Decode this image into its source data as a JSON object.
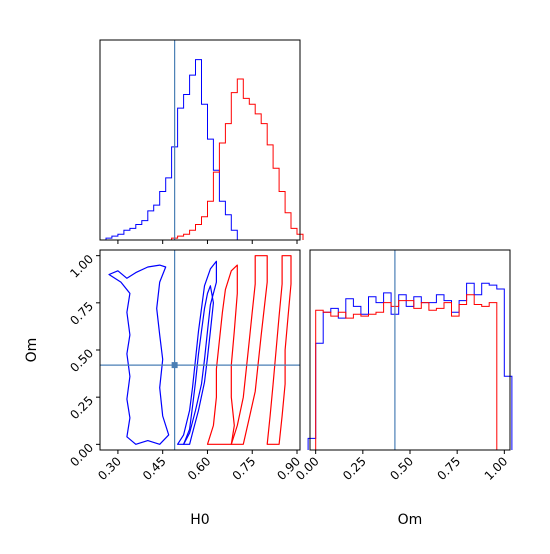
{
  "chart_data": {
    "type": "corner",
    "parameters": [
      "H0",
      "Om"
    ],
    "truths": {
      "H0": 0.49,
      "Om": 0.42
    },
    "truth_color": "#4a7fb5",
    "series_colors": {
      "blue": "#0000ff",
      "red": "#ff0000"
    },
    "axes": {
      "H0": {
        "label": "H0",
        "range": [
          0.24,
          0.91
        ],
        "ticks": [
          0.3,
          0.45,
          0.6,
          0.75,
          0.9
        ],
        "tick_labels": [
          "0.30",
          "0.45",
          "0.60",
          "0.75",
          "0.90"
        ]
      },
      "Om": {
        "label": "Om",
        "range": [
          -0.03,
          1.03
        ],
        "ticks": [
          0.0,
          0.25,
          0.5,
          0.75,
          1.0
        ],
        "tick_labels": [
          "0.00",
          "0.25",
          "0.50",
          "0.75",
          "1.00"
        ]
      }
    },
    "hist_H0": {
      "ymax": 1.0,
      "blue": {
        "edges": [
          0.26,
          0.28,
          0.3,
          0.32,
          0.34,
          0.36,
          0.38,
          0.4,
          0.42,
          0.44,
          0.46,
          0.48,
          0.5,
          0.52,
          0.54,
          0.56,
          0.58,
          0.6,
          0.62,
          0.64,
          0.66,
          0.68,
          0.7
        ],
        "counts": [
          0.01,
          0.02,
          0.03,
          0.05,
          0.06,
          0.08,
          0.1,
          0.15,
          0.18,
          0.25,
          0.32,
          0.48,
          0.68,
          0.75,
          0.85,
          0.93,
          0.7,
          0.52,
          0.36,
          0.2,
          0.13,
          0.05
        ]
      },
      "red": {
        "edges": [
          0.48,
          0.5,
          0.52,
          0.54,
          0.56,
          0.58,
          0.6,
          0.62,
          0.64,
          0.66,
          0.68,
          0.7,
          0.72,
          0.74,
          0.76,
          0.78,
          0.8,
          0.82,
          0.84,
          0.86,
          0.88,
          0.9,
          0.92
        ],
        "counts": [
          0.01,
          0.02,
          0.03,
          0.05,
          0.08,
          0.12,
          0.2,
          0.35,
          0.5,
          0.6,
          0.76,
          0.83,
          0.73,
          0.7,
          0.65,
          0.6,
          0.49,
          0.37,
          0.25,
          0.14,
          0.06,
          0.03
        ]
      }
    },
    "hist_Om": {
      "ymax": 1.0,
      "blue": {
        "edges": [
          -0.04,
          0.0,
          0.04,
          0.08,
          0.12,
          0.16,
          0.2,
          0.24,
          0.28,
          0.32,
          0.36,
          0.4,
          0.44,
          0.48,
          0.52,
          0.56,
          0.6,
          0.64,
          0.68,
          0.72,
          0.76,
          0.8,
          0.84,
          0.88,
          0.92,
          0.96,
          1.0,
          1.04
        ],
        "counts": [
          0.06,
          0.55,
          0.71,
          0.73,
          0.68,
          0.78,
          0.74,
          0.7,
          0.79,
          0.76,
          0.81,
          0.7,
          0.8,
          0.74,
          0.79,
          0.76,
          0.76,
          0.8,
          0.77,
          0.71,
          0.77,
          0.86,
          0.8,
          0.86,
          0.85,
          0.83,
          0.38
        ]
      },
      "red": {
        "edges": [
          0.0,
          0.04,
          0.08,
          0.12,
          0.16,
          0.2,
          0.24,
          0.28,
          0.32,
          0.36,
          0.4,
          0.44,
          0.48,
          0.52,
          0.56,
          0.6,
          0.64,
          0.68,
          0.72,
          0.76,
          0.8,
          0.84,
          0.88,
          0.92,
          0.96,
          1.0
        ],
        "counts": [
          0.72,
          0.71,
          0.69,
          0.71,
          0.68,
          0.7,
          0.69,
          0.7,
          0.71,
          0.76,
          0.74,
          0.77,
          0.77,
          0.73,
          0.76,
          0.72,
          0.73,
          0.76,
          0.69,
          0.75,
          0.8,
          0.75,
          0.74,
          0.76,
          0.0
        ]
      }
    },
    "contours": {
      "blue": [
        [
          [
            0.5,
            0.0
          ],
          [
            0.52,
            0.05
          ],
          [
            0.54,
            0.18
          ],
          [
            0.55,
            0.3
          ],
          [
            0.56,
            0.45
          ],
          [
            0.57,
            0.6
          ],
          [
            0.58,
            0.72
          ],
          [
            0.59,
            0.84
          ],
          [
            0.61,
            0.93
          ],
          [
            0.63,
            0.97
          ],
          [
            0.63,
            0.86
          ],
          [
            0.61,
            0.74
          ],
          [
            0.6,
            0.6
          ],
          [
            0.59,
            0.45
          ],
          [
            0.58,
            0.32
          ],
          [
            0.56,
            0.18
          ],
          [
            0.54,
            0.06
          ],
          [
            0.52,
            0.0
          ]
        ],
        [
          [
            0.52,
            0.0
          ],
          [
            0.54,
            0.08
          ],
          [
            0.55,
            0.2
          ],
          [
            0.56,
            0.33
          ],
          [
            0.57,
            0.48
          ],
          [
            0.58,
            0.6
          ],
          [
            0.59,
            0.72
          ],
          [
            0.6,
            0.8
          ],
          [
            0.61,
            0.84
          ],
          [
            0.62,
            0.75
          ],
          [
            0.61,
            0.6
          ],
          [
            0.6,
            0.46
          ],
          [
            0.59,
            0.33
          ],
          [
            0.57,
            0.18
          ],
          [
            0.55,
            0.06
          ],
          [
            0.54,
            0.0
          ]
        ],
        [
          [
            0.27,
            0.9
          ],
          [
            0.3,
            0.92
          ],
          [
            0.33,
            0.88
          ],
          [
            0.36,
            0.91
          ],
          [
            0.4,
            0.94
          ],
          [
            0.44,
            0.95
          ],
          [
            0.46,
            0.94
          ],
          [
            0.44,
            0.86
          ],
          [
            0.43,
            0.72
          ],
          [
            0.44,
            0.58
          ],
          [
            0.45,
            0.45
          ],
          [
            0.44,
            0.3
          ],
          [
            0.45,
            0.15
          ],
          [
            0.47,
            0.05
          ],
          [
            0.44,
            0.0
          ],
          [
            0.4,
            0.02
          ],
          [
            0.36,
            0.0
          ],
          [
            0.33,
            0.04
          ],
          [
            0.34,
            0.14
          ],
          [
            0.33,
            0.24
          ],
          [
            0.34,
            0.36
          ],
          [
            0.33,
            0.48
          ],
          [
            0.34,
            0.58
          ],
          [
            0.33,
            0.7
          ],
          [
            0.34,
            0.8
          ],
          [
            0.31,
            0.86
          ],
          [
            0.27,
            0.9
          ]
        ]
      ],
      "red": [
        [
          [
            0.68,
            0.0
          ],
          [
            0.7,
            0.1
          ],
          [
            0.72,
            0.25
          ],
          [
            0.73,
            0.4
          ],
          [
            0.74,
            0.55
          ],
          [
            0.75,
            0.7
          ],
          [
            0.76,
            0.85
          ],
          [
            0.76,
            1.0
          ],
          [
            0.8,
            1.0
          ],
          [
            0.8,
            0.86
          ],
          [
            0.79,
            0.72
          ],
          [
            0.78,
            0.58
          ],
          [
            0.77,
            0.43
          ],
          [
            0.76,
            0.28
          ],
          [
            0.74,
            0.14
          ],
          [
            0.72,
            0.0
          ]
        ],
        [
          [
            0.6,
            0.0
          ],
          [
            0.62,
            0.1
          ],
          [
            0.63,
            0.25
          ],
          [
            0.63,
            0.4
          ],
          [
            0.64,
            0.55
          ],
          [
            0.65,
            0.7
          ],
          [
            0.66,
            0.82
          ],
          [
            0.68,
            0.92
          ],
          [
            0.7,
            0.95
          ],
          [
            0.7,
            0.8
          ],
          [
            0.69,
            0.6
          ],
          [
            0.68,
            0.42
          ],
          [
            0.68,
            0.25
          ],
          [
            0.69,
            0.1
          ],
          [
            0.68,
            0.0
          ]
        ],
        [
          [
            0.8,
            0.0
          ],
          [
            0.81,
            0.15
          ],
          [
            0.82,
            0.32
          ],
          [
            0.83,
            0.5
          ],
          [
            0.84,
            0.68
          ],
          [
            0.85,
            0.85
          ],
          [
            0.85,
            1.0
          ],
          [
            0.88,
            1.0
          ],
          [
            0.88,
            0.85
          ],
          [
            0.87,
            0.68
          ],
          [
            0.86,
            0.5
          ],
          [
            0.86,
            0.32
          ],
          [
            0.85,
            0.15
          ],
          [
            0.84,
            0.0
          ]
        ]
      ]
    }
  }
}
